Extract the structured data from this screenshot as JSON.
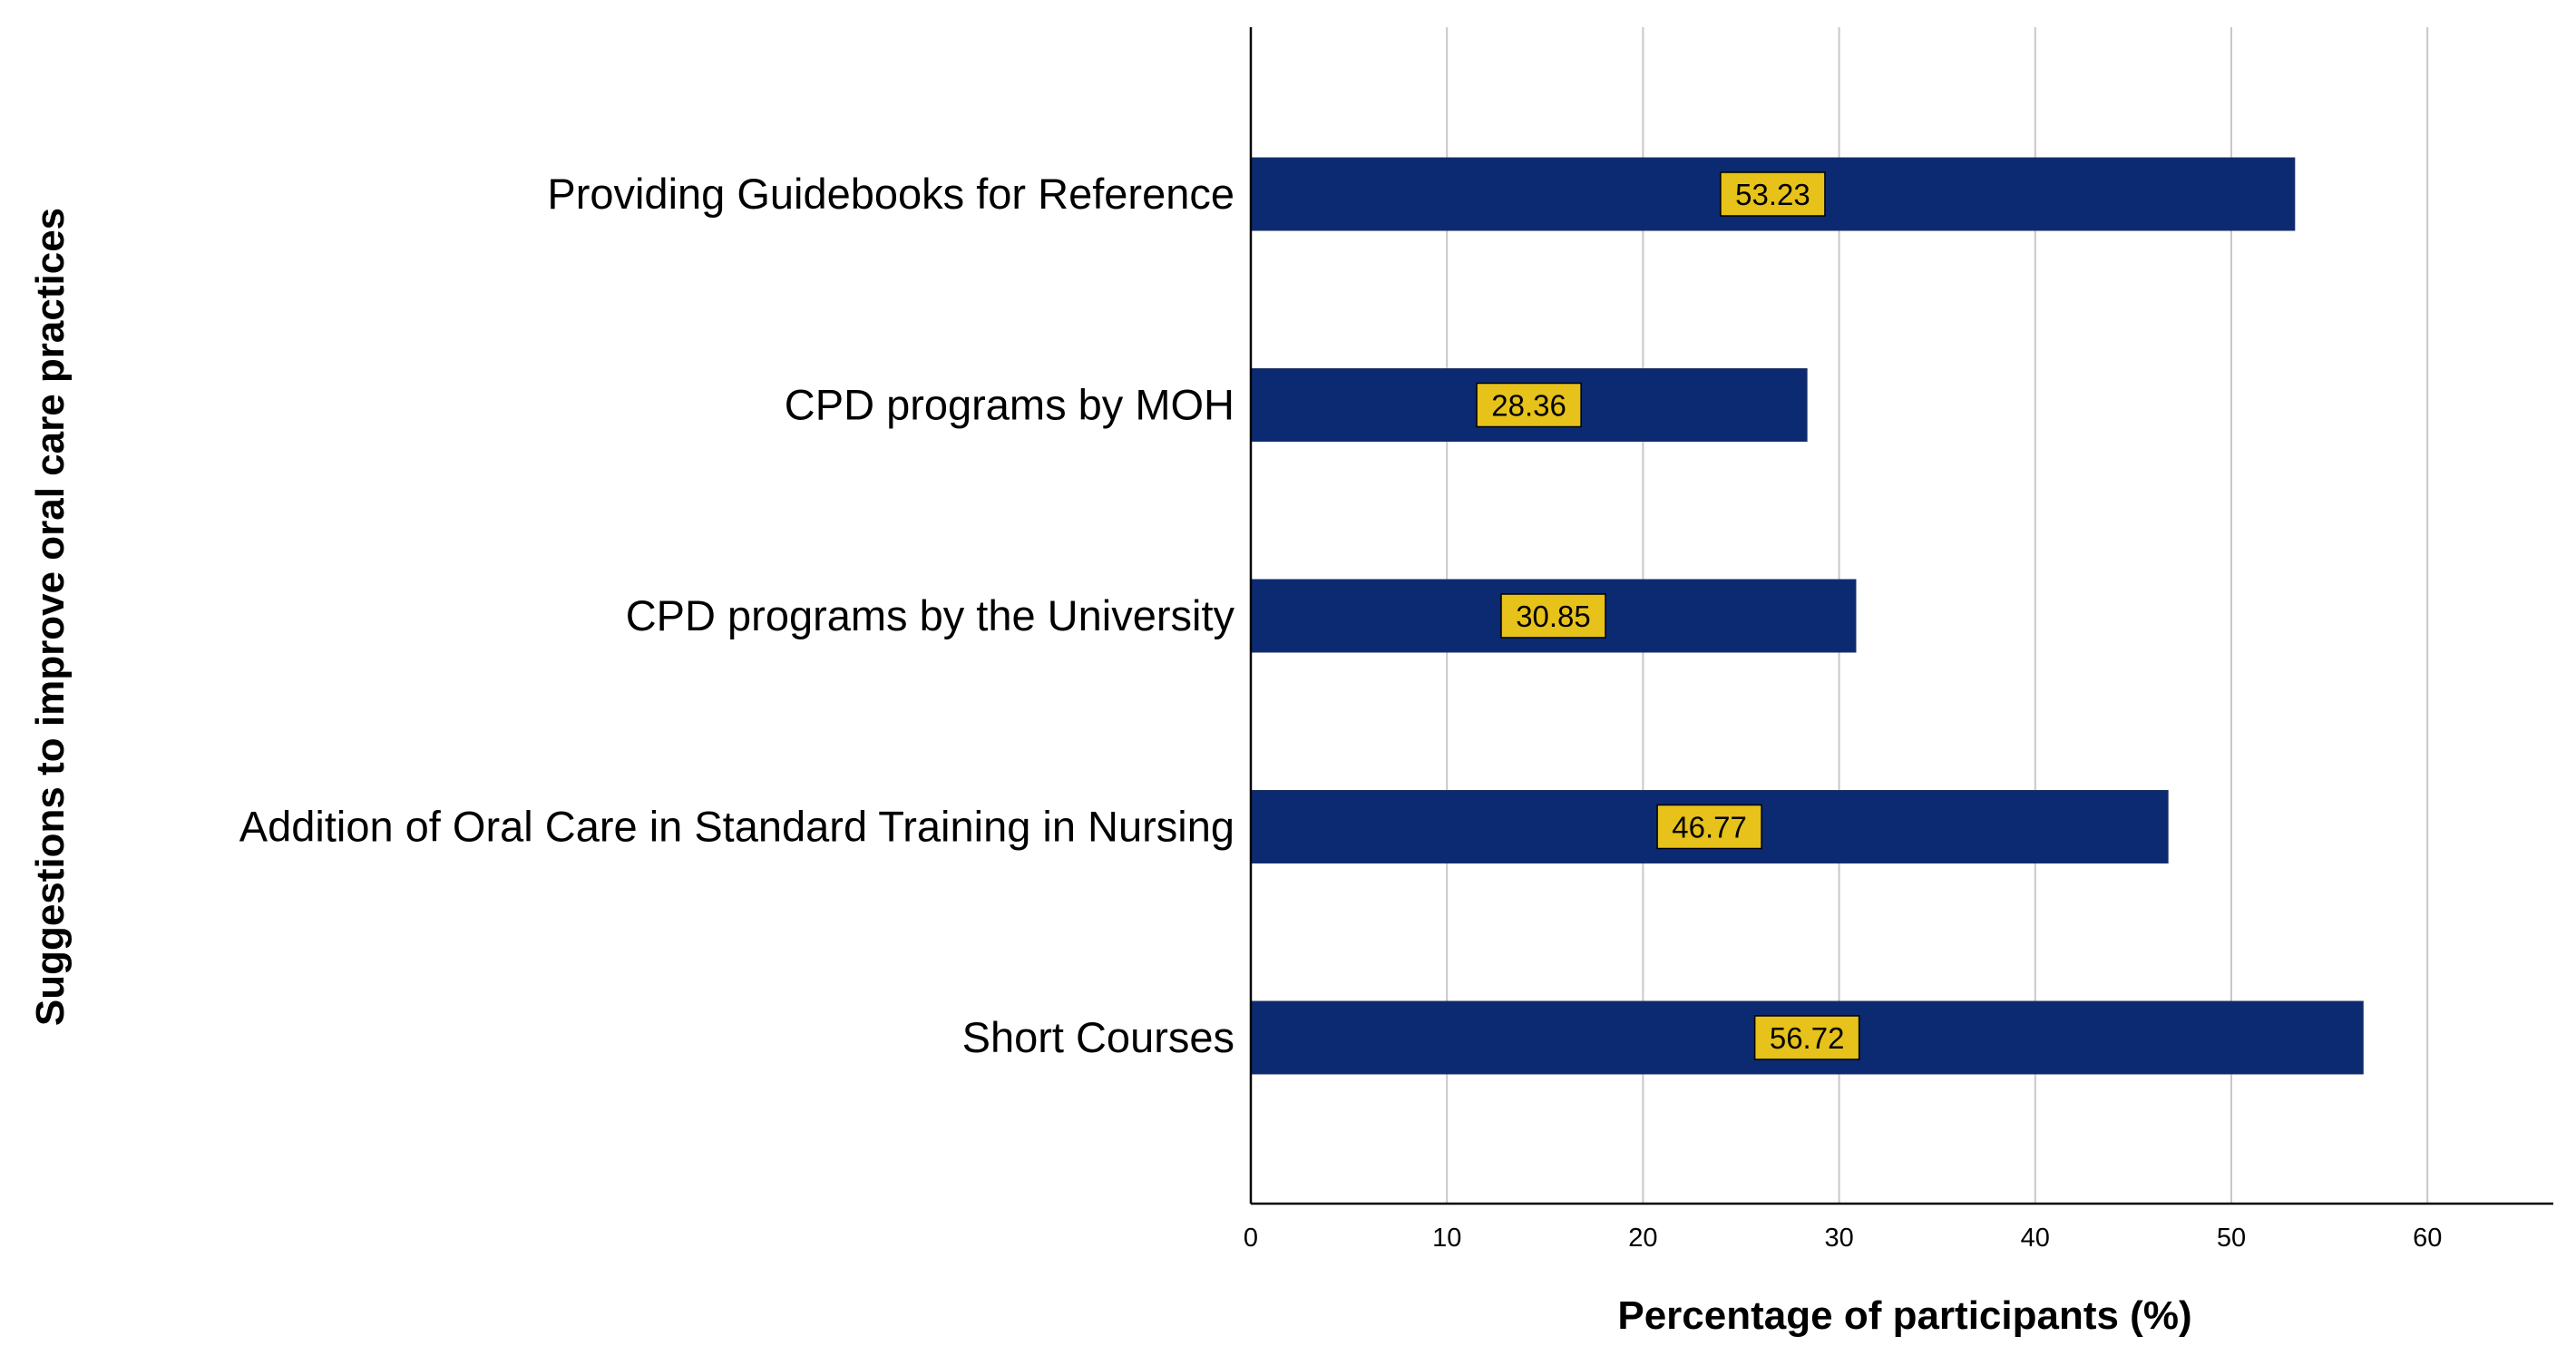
{
  "chart_data": {
    "type": "bar",
    "orientation": "horizontal",
    "categories": [
      "Providing Guidebooks for Reference",
      "CPD programs by MOH",
      "CPD programs by the University",
      "Addition of Oral Care in Standard Training in Nursing",
      "Short Courses"
    ],
    "values": [
      53.23,
      28.36,
      30.85,
      46.77,
      56.72
    ],
    "data_labels": [
      "53.23",
      "28.36",
      "30.85",
      "46.77",
      "56.72"
    ],
    "xlabel": "Percentage of participants (%)",
    "ylabel": "Suggestions to improve oral care practices",
    "xlim": [
      0,
      66
    ],
    "xticks": [
      0,
      10,
      20,
      30,
      40,
      50,
      60
    ],
    "grid": "vertical",
    "legend": "none",
    "colors": {
      "bar": "#0c2a72",
      "label_box": "#e6c21a",
      "grid": "#c8c8c8",
      "axis": "#000000"
    }
  }
}
